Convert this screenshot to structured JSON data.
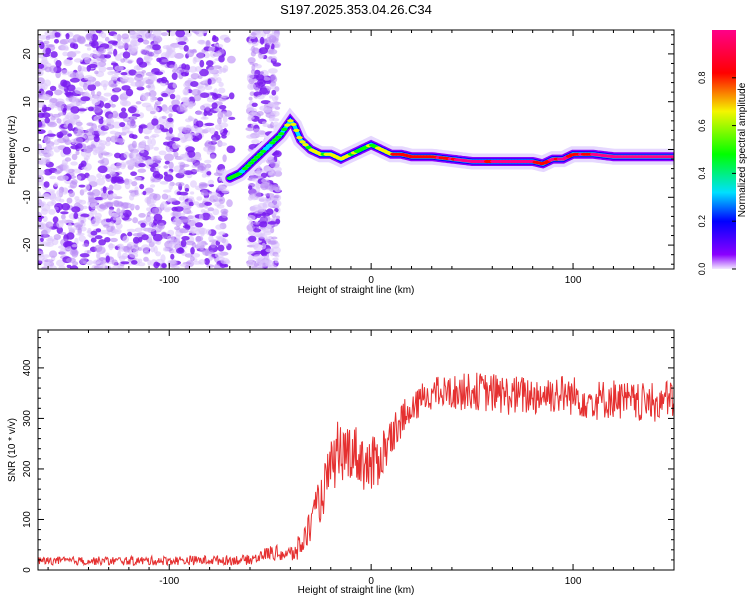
{
  "title": "S197.2025.353.04.26.C34",
  "colors": {
    "cb_violet": "#f3e8ff",
    "cb_purple": "#8a00ff",
    "cb_blue": "#0000ff",
    "cb_cyan": "#00e0ff",
    "cb_green": "#00ff00",
    "cb_yellow": "#f5f500",
    "cb_red": "#ff0000",
    "cb_magenta": "#ff0088",
    "noise": "#7a1cf0",
    "snr_line": "#e53030"
  },
  "chart_data": [
    {
      "type": "heatmap",
      "name": "spectrogram",
      "title": "S197.2025.353.04.26.C34",
      "xlabel": "Height of straight line (km)",
      "ylabel": "Frequency (Hz)",
      "xlim": [
        -165,
        150
      ],
      "ylim": [
        -25,
        25
      ],
      "xticks": [
        -100,
        0,
        100
      ],
      "yticks": [
        -20,
        -10,
        0,
        10,
        20
      ],
      "xtick_labels": [
        "-100",
        "0",
        "100"
      ],
      "ytick_labels": [
        "-20",
        "-10",
        "0",
        "10",
        "20"
      ],
      "colorbar": {
        "label": "Normalized spectral amplitude",
        "range": [
          0,
          1
        ],
        "ticks": [
          0.0,
          0.2,
          0.4,
          0.6,
          0.8
        ],
        "tick_labels": [
          "0.0",
          "0.2",
          "0.4",
          "0.6",
          "0.8"
        ]
      },
      "ridge": {
        "x": [
          -70,
          -65,
          -60,
          -55,
          -50,
          -45,
          -40,
          -38,
          -35,
          -30,
          -25,
          -20,
          -15,
          -10,
          -5,
          0,
          5,
          10,
          15,
          20,
          30,
          40,
          50,
          60,
          70,
          80,
          85,
          90,
          95,
          100,
          110,
          120,
          130,
          140,
          150
        ],
        "y": [
          -6,
          -5,
          -3,
          -1,
          1,
          3,
          6,
          5,
          2,
          0,
          -1,
          -1,
          -2,
          -1,
          0,
          1,
          0,
          -1,
          -1,
          -1.5,
          -1.5,
          -2,
          -2.5,
          -2.5,
          -2.5,
          -2.5,
          -3,
          -2,
          -2,
          -1,
          -1,
          -1.5,
          -1.5,
          -1.5,
          -1.5
        ],
        "amplitude": [
          0.3,
          0.35,
          0.4,
          0.4,
          0.35,
          0.4,
          0.45,
          0.45,
          0.5,
          0.55,
          0.5,
          0.5,
          0.55,
          0.45,
          0.45,
          0.5,
          0.55,
          0.65,
          0.85,
          0.75,
          0.8,
          0.85,
          0.9,
          0.85,
          0.9,
          0.85,
          0.7,
          0.8,
          0.9,
          0.75,
          0.85,
          0.95,
          0.95,
          0.95,
          0.95
        ]
      },
      "noise_region_x": [
        -165,
        -50
      ]
    },
    {
      "type": "line",
      "name": "snr",
      "xlabel": "Height of straight line (km)",
      "ylabel": "SNR (10 * v/v)",
      "xlim": [
        -165,
        150
      ],
      "ylim": [
        0,
        475
      ],
      "xticks": [
        -100,
        0,
        100
      ],
      "yticks": [
        0,
        100,
        200,
        300,
        400
      ],
      "xtick_labels": [
        "-100",
        "0",
        "100"
      ],
      "ytick_labels": [
        "0",
        "100",
        "200",
        "300",
        "400"
      ],
      "trend": {
        "x": [
          -165,
          -120,
          -60,
          -50,
          -40,
          -35,
          -30,
          -25,
          -20,
          -15,
          -10,
          -5,
          0,
          5,
          10,
          15,
          20,
          25,
          30,
          40,
          50,
          60,
          70,
          80,
          90,
          100,
          110,
          120,
          130,
          140,
          150
        ],
        "y": [
          18,
          18,
          20,
          35,
          30,
          45,
          90,
          140,
          200,
          230,
          240,
          220,
          200,
          230,
          260,
          300,
          310,
          340,
          350,
          350,
          355,
          350,
          345,
          345,
          350,
          345,
          335,
          340,
          330,
          330,
          340
        ]
      },
      "noise_amplitude": {
        "x": [
          -165,
          -60,
          -40,
          -20,
          0,
          20,
          60,
          150
        ],
        "y": [
          8,
          10,
          18,
          55,
          60,
          30,
          40,
          40
        ]
      }
    }
  ]
}
